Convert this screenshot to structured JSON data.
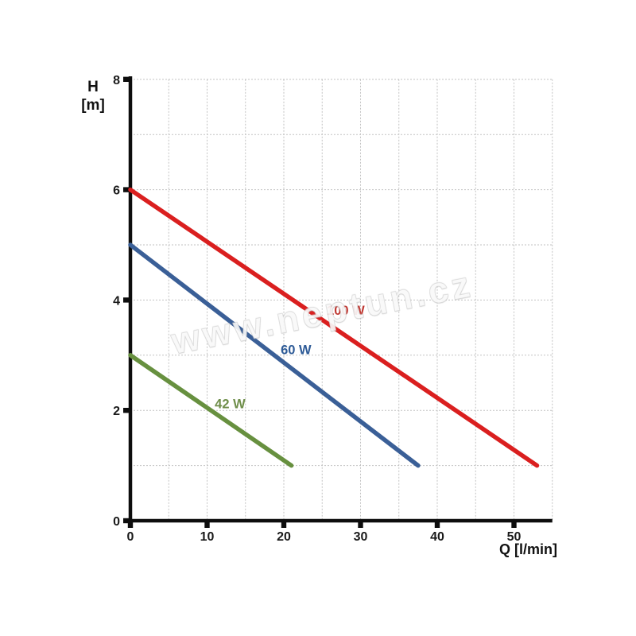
{
  "watermark": {
    "text": "www.neptun.cz"
  },
  "chart_data": {
    "type": "line",
    "xlabel": "Q [l/min]",
    "ylabel": "H [m]",
    "ylabel_lines": [
      "H",
      "[m]"
    ],
    "xlim": [
      0,
      55
    ],
    "ylim": [
      0,
      8
    ],
    "x_ticks": [
      0,
      10,
      20,
      30,
      40,
      50
    ],
    "y_ticks": [
      0,
      2,
      4,
      6,
      8
    ],
    "x_grid_step": 5,
    "y_grid_step": 1,
    "grid": true,
    "grid_color": "#c2c2c2",
    "axis_color": "#0d0d0d",
    "tick_label_color": "#1a1a1a",
    "series": [
      {
        "name": "100 W",
        "color": "#da1f1f",
        "label_color": "#c03a34",
        "points": [
          [
            0,
            6
          ],
          [
            53,
            1
          ]
        ],
        "label_pos": [
          25.6,
          3.73
        ]
      },
      {
        "name": "60 W",
        "color": "#3a5f97",
        "label_color": "#2e5b97",
        "points": [
          [
            0,
            5
          ],
          [
            37.5,
            1
          ]
        ],
        "label_pos": [
          19.6,
          3.02
        ]
      },
      {
        "name": "42 W",
        "color": "#67903f",
        "label_color": "#6f8e4a",
        "points": [
          [
            0,
            3
          ],
          [
            21,
            1
          ]
        ],
        "label_pos": [
          11.0,
          2.04
        ]
      }
    ]
  }
}
